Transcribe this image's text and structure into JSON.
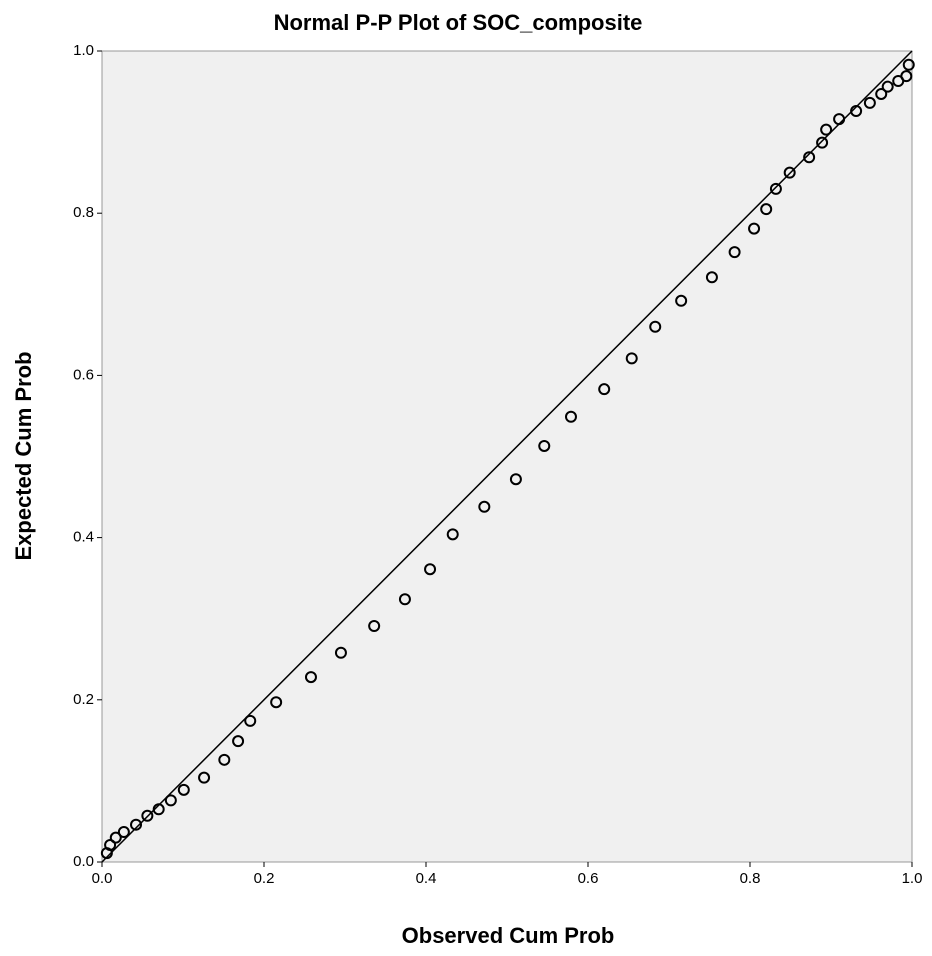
{
  "chart_data": {
    "type": "scatter",
    "title": "Normal P-P Plot of SOC_composite",
    "x_label": "Observed Cum Prob",
    "y_label": "Expected Cum Prob",
    "xlim": [
      0,
      1
    ],
    "ylim": [
      0,
      1
    ],
    "xticks": [
      {
        "value": 0,
        "label": "0.0"
      },
      {
        "value": 0.2,
        "label": "0.2"
      },
      {
        "value": 0.4,
        "label": "0.4"
      },
      {
        "value": 0.6,
        "label": "0.6"
      },
      {
        "value": 0.8,
        "label": "0.8"
      },
      {
        "value": 1,
        "label": "1.0"
      }
    ],
    "yticks": [
      {
        "value": 0,
        "label": "0.0"
      },
      {
        "value": 0.2,
        "label": "0.2"
      },
      {
        "value": 0.4,
        "label": "0.4"
      },
      {
        "value": 0.6,
        "label": "0.6"
      },
      {
        "value": 0.8,
        "label": "0.8"
      },
      {
        "value": 1,
        "label": "1.0"
      }
    ],
    "color": "#000000",
    "x": [
      0.006,
      0.01,
      0.017,
      0.027,
      0.042,
      0.056,
      0.07,
      0.085,
      0.101,
      0.126,
      0.151,
      0.168,
      0.183,
      0.215,
      0.258,
      0.295,
      0.336,
      0.374,
      0.405,
      0.433,
      0.472,
      0.511,
      0.546,
      0.579,
      0.62,
      0.654,
      0.683,
      0.715,
      0.753,
      0.781,
      0.805,
      0.82,
      0.832,
      0.849,
      0.873,
      0.889,
      0.894,
      0.91,
      0.931,
      0.948,
      0.962,
      0.97,
      0.983,
      0.993,
      0.996
    ],
    "values": [
      0.011,
      0.021,
      0.03,
      0.037,
      0.046,
      0.057,
      0.065,
      0.076,
      0.089,
      0.104,
      0.126,
      0.149,
      0.174,
      0.197,
      0.228,
      0.258,
      0.291,
      0.324,
      0.361,
      0.404,
      0.438,
      0.472,
      0.513,
      0.549,
      0.583,
      0.621,
      0.66,
      0.692,
      0.721,
      0.752,
      0.781,
      0.805,
      0.83,
      0.85,
      0.869,
      0.887,
      0.903,
      0.916,
      0.926,
      0.936,
      0.947,
      0.956,
      0.963,
      0.969,
      0.983
    ]
  }
}
